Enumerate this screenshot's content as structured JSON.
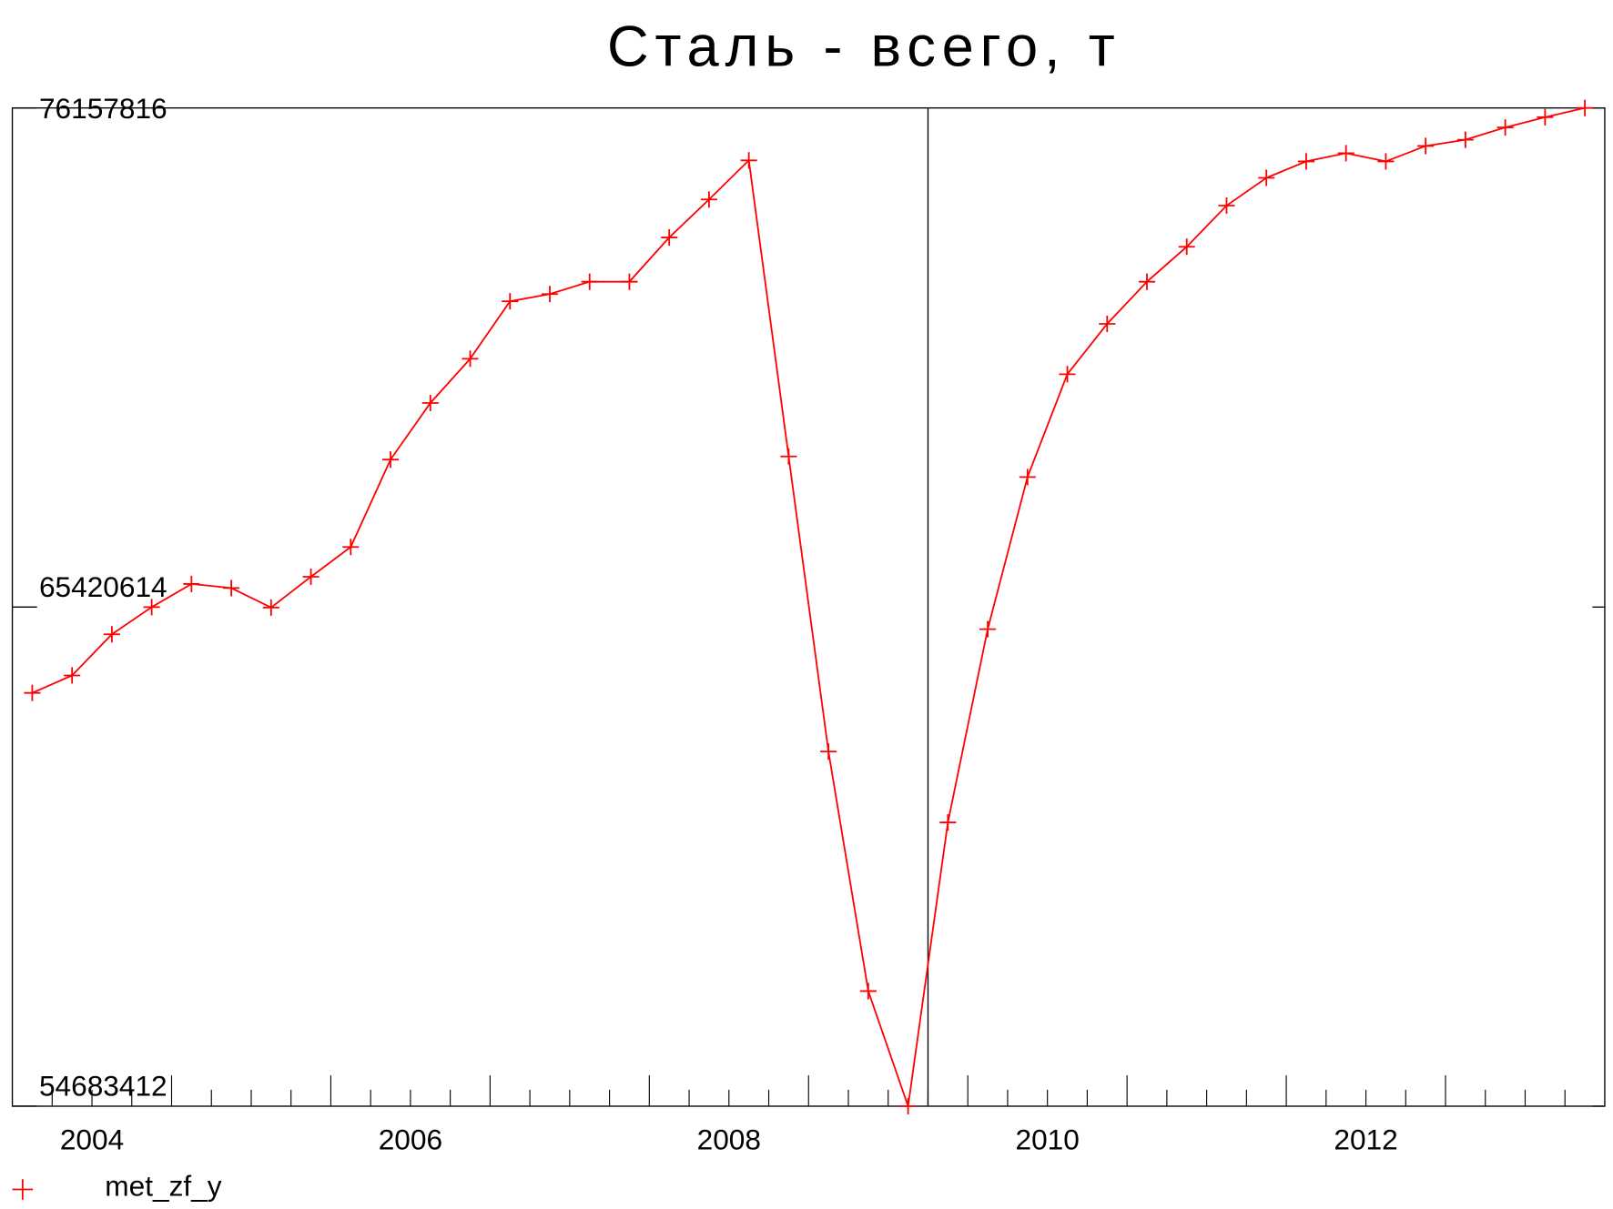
{
  "chart_data": {
    "type": "line",
    "title": "Сталь - всего, т",
    "x": [
      2004.125,
      2004.375,
      2004.625,
      2004.875,
      2005.125,
      2005.375,
      2005.625,
      2005.875,
      2006.125,
      2006.375,
      2006.625,
      2006.875,
      2007.125,
      2007.375,
      2007.625,
      2007.875,
      2008.125,
      2008.375,
      2008.625,
      2008.875,
      2009.125,
      2009.375,
      2009.625,
      2009.875,
      2010.125,
      2010.375,
      2010.625,
      2010.875,
      2011.125,
      2011.375,
      2011.625,
      2011.875,
      2012.125,
      2012.375,
      2012.625,
      2012.875,
      2013.125,
      2013.375,
      2013.625,
      2013.875
    ],
    "series": [
      {
        "name": "met_zf_y",
        "color": "#ff0000",
        "marker": "+",
        "values": [
          63574000,
          63950000,
          64835000,
          65420000,
          65918000,
          65830000,
          65410000,
          66073000,
          66714000,
          68594000,
          69811000,
          70762000,
          71999000,
          72154000,
          72420000,
          72420000,
          73371000,
          74189000,
          75030000,
          68661000,
          62313000,
          57160000,
          54683412,
          60788000,
          64945000,
          68218000,
          70430000,
          71513000,
          72420000,
          73172000,
          74057000,
          74654000,
          75008000,
          75185000,
          75008000,
          75340000,
          75473000,
          75738000,
          75959000,
          76157816
        ]
      }
    ],
    "xlim": [
      2004,
      2014
    ],
    "xticks": [
      {
        "value": 2004,
        "label": "2004"
      },
      {
        "value": 2006,
        "label": "2006"
      },
      {
        "value": 2008,
        "label": "2008"
      },
      {
        "value": 2010,
        "label": "2010"
      },
      {
        "value": 2012,
        "label": "2012"
      }
    ],
    "ylim": [
      54683412,
      76157816
    ],
    "yticks": [
      54683412,
      65420614,
      76157816
    ],
    "vline": 2009.75,
    "grid": false,
    "legend": "bottom-left"
  }
}
